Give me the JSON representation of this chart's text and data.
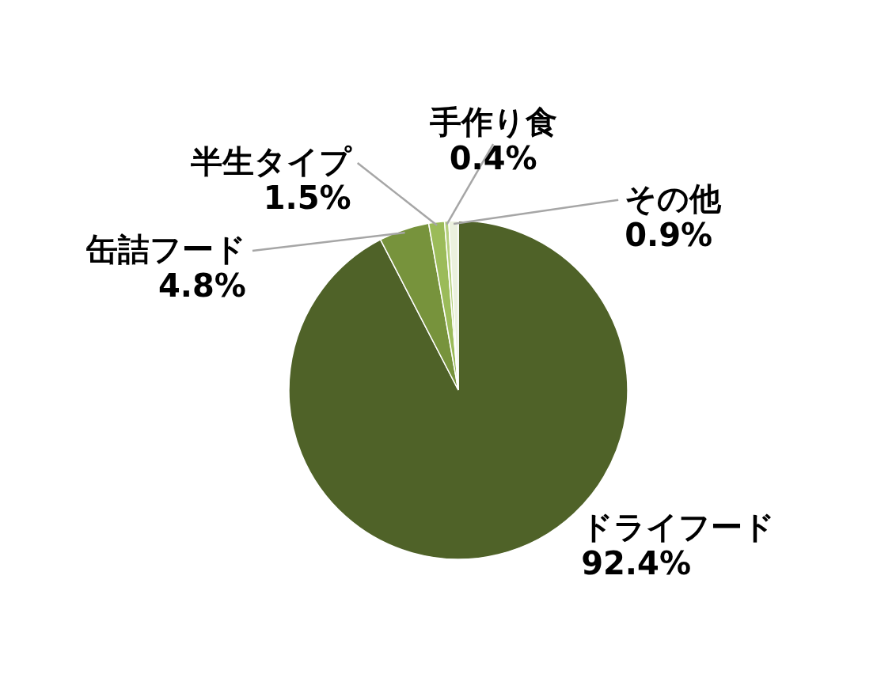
{
  "chart_data": {
    "type": "pie",
    "categories": [
      "ドライフード",
      "缶詰フード",
      "半生タイプ",
      "手作り食",
      "その他"
    ],
    "values": [
      92.4,
      4.8,
      1.5,
      0.4,
      0.9
    ],
    "colors": [
      "#4f6228",
      "#77933c",
      "#9bbb59",
      "#b5cf7e",
      "#ebf1de"
    ],
    "value_labels": [
      "92.4%",
      "4.8%",
      "1.5%",
      "0.4%",
      "0.9%"
    ]
  }
}
